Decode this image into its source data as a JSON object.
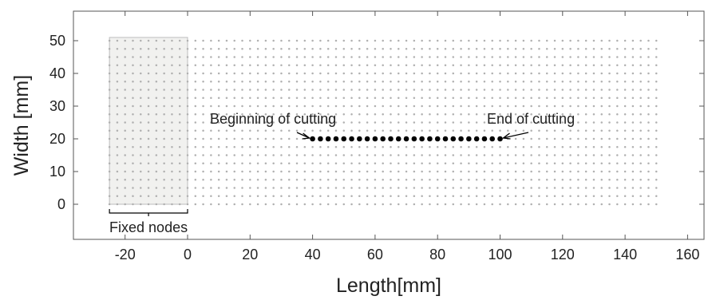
{
  "chart_data": {
    "type": "scatter",
    "xlabel": "Length[mm]",
    "ylabel": "Width [mm]",
    "xlim": [
      -35,
      160
    ],
    "ylim": [
      -10,
      57
    ],
    "xticks": [
      -20,
      0,
      20,
      40,
      60,
      80,
      100,
      120,
      140,
      160
    ],
    "yticks": [
      0,
      10,
      20,
      30,
      40,
      50
    ],
    "grid": false,
    "mesh_nodes": {
      "x_min": -25,
      "x_max": 150,
      "x_step": 2.5,
      "y_min": 0,
      "y_max": 50,
      "y_step": 2.5,
      "color": "#b0b0b0"
    },
    "fixed_region": {
      "x": [
        -25,
        0
      ],
      "y": [
        0,
        51
      ],
      "fill": "#f1f1ef",
      "stroke": "#bdbdbd"
    },
    "cutting_path": {
      "x_start": 40,
      "x_end": 100,
      "step": 2.5,
      "y": 20,
      "color": "#000000"
    },
    "annotations": [
      {
        "text": "Beginning of cutting",
        "target": [
          40,
          20
        ]
      },
      {
        "text": "End of cutting",
        "target": [
          100,
          20
        ]
      },
      {
        "text": "Fixed nodes",
        "target": [
          -12.5,
          -2
        ]
      }
    ]
  }
}
